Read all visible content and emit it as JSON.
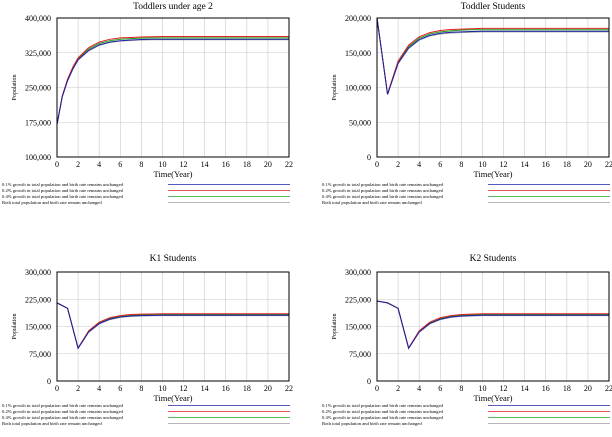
{
  "colors": {
    "growth_0_1": "#1f1fa8",
    "growth_0_2": "#e02020",
    "growth_0_4": "#1ea01e",
    "unchanged": "#a0a0a0",
    "frame": "#000000",
    "grid": "#c8c8c8"
  },
  "legend_entries": [
    "0.1% growth in total population and birth rate remains unchanged",
    "0.2% growth in total population and birth rate remains unchanged",
    "0.4% growth in total population and birth rate remains unchanged",
    "Both total population and birth rate remain unchanged"
  ],
  "chart_data": [
    {
      "type": "line",
      "title": "Toddlers under age 2",
      "xlabel": "Time(Year)",
      "ylabel": "Population",
      "xlim": [
        0,
        22
      ],
      "ylim": [
        100000,
        400000
      ],
      "xticks": [
        0,
        2,
        4,
        6,
        8,
        10,
        12,
        14,
        16,
        18,
        20,
        22
      ],
      "yticks": [
        100000,
        175000,
        250000,
        325000,
        400000
      ],
      "ytick_labels": [
        "100,000",
        "175,000",
        "250,000",
        "325,000",
        "400,000"
      ],
      "grid": true,
      "x": [
        0,
        0.5,
        1,
        1.5,
        2,
        3,
        4,
        5,
        6,
        7,
        8,
        9,
        10,
        12,
        14,
        16,
        18,
        20,
        22
      ],
      "series": [
        {
          "name": "0.1% growth in total population and birth rate remains unchanged",
          "color_key": "growth_0_1",
          "values": [
            170000,
            230000,
            265000,
            290000,
            310000,
            330000,
            342000,
            348000,
            351000,
            352500,
            353500,
            354000,
            354000,
            354000,
            354000,
            354000,
            354000,
            354000,
            354000
          ]
        },
        {
          "name": "0.2% growth in total population and birth rate remains unchanged",
          "color_key": "growth_0_2",
          "values": [
            170000,
            232000,
            268000,
            294000,
            314000,
            336000,
            348000,
            354000,
            357000,
            358000,
            359000,
            359500,
            360000,
            360000,
            360000,
            360000,
            360000,
            360000,
            360000
          ]
        },
        {
          "name": "0.4% growth in total population and birth rate remains unchanged",
          "color_key": "growth_0_4",
          "values": [
            170000,
            231000,
            266000,
            292000,
            312000,
            333000,
            345000,
            351000,
            354000,
            355500,
            356500,
            357000,
            357000,
            357000,
            357000,
            357000,
            357000,
            357000,
            357000
          ]
        },
        {
          "name": "Both total population and birth rate remain unchanged",
          "color_key": "unchanged",
          "values": [
            170000,
            230000,
            264000,
            289000,
            309000,
            329000,
            341000,
            347000,
            350000,
            351500,
            352500,
            353000,
            353000,
            353000,
            353000,
            353000,
            353000,
            353000,
            353000
          ]
        }
      ]
    },
    {
      "type": "line",
      "title": "Toddler Students",
      "xlabel": "Time(Year)",
      "ylabel": "Population",
      "xlim": [
        0,
        22
      ],
      "ylim": [
        0,
        200000
      ],
      "xticks": [
        0,
        2,
        4,
        6,
        8,
        10,
        12,
        14,
        16,
        18,
        20,
        22
      ],
      "yticks": [
        0,
        50000,
        100000,
        150000,
        200000
      ],
      "ytick_labels": [
        "0",
        "50,000",
        "100,000",
        "150,000",
        "200,000"
      ],
      "grid": true,
      "x": [
        0,
        1,
        2,
        3,
        4,
        5,
        6,
        7,
        8,
        9,
        10,
        12,
        14,
        16,
        18,
        20,
        22
      ],
      "series": [
        {
          "name": "0.1% growth in total population and birth rate remains unchanged",
          "color_key": "growth_0_1",
          "values": [
            200000,
            90000,
            135000,
            157000,
            169000,
            175000,
            178000,
            179500,
            180000,
            180500,
            181000,
            181000,
            181000,
            181000,
            181000,
            181000,
            181000
          ]
        },
        {
          "name": "0.2% growth in total population and birth rate remains unchanged",
          "color_key": "growth_0_2",
          "values": [
            200000,
            91000,
            138000,
            161000,
            173000,
            179000,
            182000,
            183500,
            184000,
            184500,
            185000,
            185000,
            185000,
            185000,
            185000,
            185000,
            185000
          ]
        },
        {
          "name": "0.4% growth in total population and birth rate remains unchanged",
          "color_key": "growth_0_4",
          "values": [
            200000,
            90500,
            136500,
            159000,
            171000,
            177000,
            180000,
            181500,
            182500,
            183000,
            183000,
            183000,
            183000,
            183000,
            183000,
            183000,
            183000
          ]
        },
        {
          "name": "Both total population and birth rate remain unchanged",
          "color_key": "unchanged",
          "values": [
            200000,
            90000,
            134000,
            156000,
            168000,
            174000,
            177000,
            178500,
            179000,
            179500,
            180000,
            180000,
            180000,
            180000,
            180000,
            180000,
            180000
          ]
        }
      ]
    },
    {
      "type": "line",
      "title": "K1 Students",
      "xlabel": "Time(Year)",
      "ylabel": "Population",
      "xlim": [
        0,
        22
      ],
      "ylim": [
        0,
        300000
      ],
      "xticks": [
        0,
        2,
        4,
        6,
        8,
        10,
        12,
        14,
        16,
        18,
        20,
        22
      ],
      "yticks": [
        0,
        75000,
        150000,
        225000,
        300000
      ],
      "ytick_labels": [
        "0",
        "75,000",
        "150,000",
        "225,000",
        "300,000"
      ],
      "grid": true,
      "x": [
        0,
        1,
        2,
        3,
        4,
        5,
        6,
        7,
        8,
        9,
        10,
        12,
        14,
        16,
        18,
        20,
        22
      ],
      "series": [
        {
          "name": "0.1% growth in total population and birth rate remains unchanged",
          "color_key": "growth_0_1",
          "values": [
            215000,
            200000,
            90000,
            135000,
            158000,
            170000,
            176000,
            179000,
            180000,
            180500,
            181000,
            181000,
            181000,
            181000,
            181000,
            181000,
            181000
          ]
        },
        {
          "name": "0.2% growth in total population and birth rate remains unchanged",
          "color_key": "growth_0_2",
          "values": [
            215000,
            200000,
            91000,
            138000,
            162000,
            174000,
            180000,
            183000,
            184000,
            184500,
            185000,
            185000,
            185000,
            185000,
            185000,
            185000,
            185000
          ]
        },
        {
          "name": "0.4% growth in total population and birth rate remains unchanged",
          "color_key": "growth_0_4",
          "values": [
            215000,
            200000,
            90500,
            136500,
            160000,
            172000,
            178000,
            181000,
            182000,
            182500,
            183000,
            183000,
            183000,
            183000,
            183000,
            183000,
            183000
          ]
        },
        {
          "name": "Both total population and birth rate remain unchanged",
          "color_key": "unchanged",
          "values": [
            215000,
            200000,
            90000,
            134000,
            157000,
            169000,
            175000,
            178000,
            179000,
            179500,
            180000,
            180000,
            180000,
            180000,
            180000,
            180000,
            180000
          ]
        }
      ]
    },
    {
      "type": "line",
      "title": "K2 Students",
      "xlabel": "Time(Year)",
      "ylabel": "Population",
      "xlim": [
        0,
        22
      ],
      "ylim": [
        0,
        300000
      ],
      "xticks": [
        0,
        2,
        4,
        6,
        8,
        10,
        12,
        14,
        16,
        18,
        20,
        22
      ],
      "yticks": [
        0,
        75000,
        150000,
        225000,
        300000
      ],
      "ytick_labels": [
        "0",
        "75,000",
        "150,000",
        "225,000",
        "300,000"
      ],
      "grid": true,
      "x": [
        0,
        1,
        2,
        3,
        4,
        5,
        6,
        7,
        8,
        9,
        10,
        12,
        14,
        16,
        18,
        20,
        22
      ],
      "series": [
        {
          "name": "0.1% growth in total population and birth rate remains unchanged",
          "color_key": "growth_0_1",
          "values": [
            220000,
            215000,
            200000,
            90000,
            135000,
            158000,
            170000,
            176000,
            179000,
            180000,
            181000,
            181000,
            181000,
            181000,
            181000,
            181000,
            181000
          ]
        },
        {
          "name": "0.2% growth in total population and birth rate remains unchanged",
          "color_key": "growth_0_2",
          "values": [
            220000,
            215000,
            200000,
            91000,
            138000,
            162000,
            174000,
            180000,
            183000,
            184000,
            185000,
            185000,
            185000,
            185000,
            185000,
            185000,
            185000
          ]
        },
        {
          "name": "0.4% growth in total population and birth rate remains unchanged",
          "color_key": "growth_0_4",
          "values": [
            220000,
            215000,
            200000,
            90500,
            136500,
            160000,
            172000,
            178000,
            181000,
            182000,
            183000,
            183000,
            183000,
            183000,
            183000,
            183000,
            183000
          ]
        },
        {
          "name": "Both total population and birth rate remain unchanged",
          "color_key": "unchanged",
          "values": [
            220000,
            215000,
            200000,
            90000,
            134000,
            157000,
            169000,
            175000,
            178000,
            179000,
            180000,
            180000,
            180000,
            180000,
            180000,
            180000,
            180000
          ]
        }
      ]
    }
  ]
}
